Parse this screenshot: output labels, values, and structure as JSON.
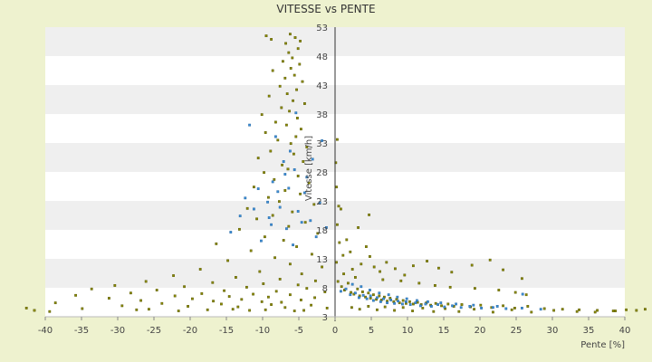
{
  "chart_data": {
    "type": "scatter",
    "title": "VITESSE vs PENTE",
    "xlabel": "Pente [%]",
    "ylabel": "Vitesse [km/h]",
    "xlim": [
      -40,
      40
    ],
    "ylim": [
      3,
      53
    ],
    "xticks": [
      "-40",
      "-35",
      "-30",
      "-25",
      "-20",
      "-15",
      "-10",
      "-5",
      "0",
      "5",
      "10",
      "15",
      "20",
      "25",
      "30",
      "35",
      "40"
    ],
    "yticks": [
      "3",
      "8",
      "13",
      "18",
      "23",
      "28",
      "33",
      "38",
      "43",
      "48",
      "53"
    ],
    "grid": "horizontal alternating bands",
    "colors": {
      "background": "#eef2cf",
      "band_white": "#ffffff",
      "band_grey": "#efefef",
      "series_olive": "#8a8a00",
      "series_blue": "#3d8fd8",
      "axis": "#333333"
    },
    "series": [
      {
        "color_key": "series_olive",
        "points": [
          [
            -6.2,
            51.8
          ],
          [
            -5.5,
            51.2
          ],
          [
            -4.8,
            50.6
          ],
          [
            -9.5,
            51.5
          ],
          [
            -8.8,
            50.9
          ],
          [
            -6.8,
            50.2
          ],
          [
            -5.1,
            49.3
          ],
          [
            -6.4,
            48.6
          ],
          [
            -5.9,
            47.7
          ],
          [
            -7.2,
            47.1
          ],
          [
            -4.9,
            46.6
          ],
          [
            -6.1,
            45.9
          ],
          [
            -8.6,
            45.5
          ],
          [
            -5.6,
            44.7
          ],
          [
            -6.9,
            44.2
          ],
          [
            -4.5,
            43.6
          ],
          [
            -7.6,
            42.8
          ],
          [
            -5.3,
            42.2
          ],
          [
            -6.6,
            41.5
          ],
          [
            -9.1,
            41.1
          ],
          [
            -5.8,
            40.3
          ],
          [
            -4.2,
            39.8
          ],
          [
            -7.4,
            39.1
          ],
          [
            -6.3,
            38.5
          ],
          [
            -10.1,
            37.9
          ],
          [
            -5.2,
            37.3
          ],
          [
            -8.2,
            36.6
          ],
          [
            -6.7,
            36.1
          ],
          [
            -4.7,
            35.4
          ],
          [
            -9.6,
            34.8
          ],
          [
            -5.4,
            34.1
          ],
          [
            -7.9,
            33.5
          ],
          [
            -6.1,
            32.9
          ],
          [
            -3.9,
            32.3
          ],
          [
            -8.9,
            31.6
          ],
          [
            -5.7,
            31.1
          ],
          [
            -10.6,
            30.4
          ],
          [
            -4.4,
            29.8
          ],
          [
            -7.3,
            29.2
          ],
          [
            -6.5,
            28.5
          ],
          [
            -9.8,
            27.9
          ],
          [
            -5.1,
            27.3
          ],
          [
            -8.4,
            26.7
          ],
          [
            -3.6,
            26.1
          ],
          [
            -11.2,
            25.4
          ],
          [
            -6.9,
            24.8
          ],
          [
            -4.8,
            24.2
          ],
          [
            -9.2,
            23.6
          ],
          [
            -7.7,
            22.9
          ],
          [
            -2.9,
            22.4
          ],
          [
            -12.1,
            21.7
          ],
          [
            -5.9,
            21.1
          ],
          [
            -8.6,
            20.5
          ],
          [
            -10.8,
            19.9
          ],
          [
            -4.1,
            19.3
          ],
          [
            -6.4,
            18.6
          ],
          [
            -13.2,
            18.1
          ],
          [
            -2.4,
            17.4
          ],
          [
            -9.7,
            16.8
          ],
          [
            -7.1,
            16.2
          ],
          [
            -16.4,
            15.6
          ],
          [
            -5.3,
            15.1
          ],
          [
            -11.6,
            14.4
          ],
          [
            -3.2,
            13.8
          ],
          [
            -8.3,
            13.2
          ],
          [
            -14.8,
            12.7
          ],
          [
            -6.2,
            12.1
          ],
          [
            -1.8,
            11.6
          ],
          [
            -18.6,
            11.2
          ],
          [
            -10.4,
            10.8
          ],
          [
            -4.6,
            10.4
          ],
          [
            -22.3,
            10.1
          ],
          [
            -13.7,
            9.8
          ],
          [
            -7.6,
            9.5
          ],
          [
            -2.7,
            9.2
          ],
          [
            -26.1,
            9.1
          ],
          [
            -16.9,
            8.9
          ],
          [
            -9.9,
            8.7
          ],
          [
            -5.1,
            8.5
          ],
          [
            -30.4,
            8.4
          ],
          [
            -20.8,
            8.2
          ],
          [
            -12.2,
            8.1
          ],
          [
            -3.9,
            7.9
          ],
          [
            -33.6,
            7.8
          ],
          [
            -24.6,
            7.6
          ],
          [
            -15.3,
            7.5
          ],
          [
            -8.1,
            7.4
          ],
          [
            -1.4,
            7.3
          ],
          [
            -28.2,
            7.1
          ],
          [
            -18.4,
            7.0
          ],
          [
            -11.3,
            6.9
          ],
          [
            -6.2,
            6.8
          ],
          [
            -35.8,
            6.7
          ],
          [
            -22.1,
            6.6
          ],
          [
            -14.6,
            6.5
          ],
          [
            -9.2,
            6.4
          ],
          [
            -2.8,
            6.3
          ],
          [
            -31.2,
            6.2
          ],
          [
            -19.7,
            6.1
          ],
          [
            -12.9,
            6.0
          ],
          [
            -4.7,
            5.9
          ],
          [
            -26.8,
            5.8
          ],
          [
            -16.8,
            5.7
          ],
          [
            -10.1,
            5.6
          ],
          [
            -7.4,
            5.5
          ],
          [
            -38.6,
            5.4
          ],
          [
            -23.9,
            5.3
          ],
          [
            -15.7,
            5.2
          ],
          [
            -8.8,
            5.1
          ],
          [
            -3.3,
            5.0
          ],
          [
            -29.4,
            4.9
          ],
          [
            -20.3,
            4.8
          ],
          [
            -13.4,
            4.7
          ],
          [
            -6.9,
            4.6
          ],
          [
            -1.1,
            4.5
          ],
          [
            -34.9,
            4.4
          ],
          [
            -25.7,
            4.3
          ],
          [
            -17.6,
            4.2
          ],
          [
            -11.8,
            4.1
          ],
          [
            -5.6,
            4.0
          ],
          [
            -39.4,
            3.9
          ],
          [
            -41.5,
            4.1
          ],
          [
            -42.6,
            4.5
          ],
          [
            -21.6,
            4.0
          ],
          [
            -27.4,
            4.2
          ],
          [
            -14.1,
            4.3
          ],
          [
            -9.6,
            4.2
          ],
          [
            -4.3,
            4.1
          ],
          [
            0.4,
            9.1
          ],
          [
            0.9,
            8.2
          ],
          [
            1.3,
            7.6
          ],
          [
            1.8,
            8.8
          ],
          [
            2.2,
            7.2
          ],
          [
            2.6,
            6.9
          ],
          [
            3.1,
            7.8
          ],
          [
            3.4,
            6.6
          ],
          [
            3.8,
            7.3
          ],
          [
            4.2,
            6.4
          ],
          [
            4.6,
            7.1
          ],
          [
            4.9,
            6.2
          ],
          [
            5.3,
            6.8
          ],
          [
            5.7,
            6.0
          ],
          [
            6.1,
            6.6
          ],
          [
            6.4,
            5.9
          ],
          [
            6.8,
            6.4
          ],
          [
            7.2,
            5.7
          ],
          [
            7.6,
            6.2
          ],
          [
            8.1,
            5.6
          ],
          [
            8.5,
            6.0
          ],
          [
            8.9,
            5.4
          ],
          [
            9.4,
            5.8
          ],
          [
            9.8,
            5.3
          ],
          [
            10.3,
            5.6
          ],
          [
            10.8,
            5.2
          ],
          [
            11.4,
            5.5
          ],
          [
            11.9,
            5.1
          ],
          [
            12.6,
            5.4
          ],
          [
            13.2,
            5.0
          ],
          [
            13.9,
            5.3
          ],
          [
            14.7,
            4.9
          ],
          [
            15.6,
            5.2
          ],
          [
            16.4,
            4.8
          ],
          [
            17.5,
            5.1
          ],
          [
            18.7,
            4.7
          ],
          [
            20.1,
            5.0
          ],
          [
            21.6,
            4.6
          ],
          [
            23.2,
            4.9
          ],
          [
            24.8,
            4.5
          ],
          [
            26.6,
            4.8
          ],
          [
            28.9,
            4.4
          ],
          [
            31.4,
            4.3
          ],
          [
            33.7,
            4.2
          ],
          [
            36.2,
            4.1
          ],
          [
            38.4,
            4.0
          ],
          [
            40.2,
            4.2
          ],
          [
            41.6,
            4.1
          ],
          [
            42.8,
            4.3
          ],
          [
            1.2,
            10.4
          ],
          [
            2.4,
            11.2
          ],
          [
            3.6,
            12.1
          ],
          [
            4.8,
            13.4
          ],
          [
            5.4,
            11.6
          ],
          [
            6.2,
            10.8
          ],
          [
            7.1,
            12.4
          ],
          [
            8.3,
            11.3
          ],
          [
            9.6,
            10.2
          ],
          [
            10.8,
            11.8
          ],
          [
            12.7,
            12.6
          ],
          [
            14.3,
            11.4
          ],
          [
            16.1,
            10.7
          ],
          [
            18.9,
            11.9
          ],
          [
            21.4,
            12.8
          ],
          [
            23.2,
            11.1
          ],
          [
            25.8,
            9.6
          ],
          [
            2.1,
            14.2
          ],
          [
            4.3,
            15.1
          ],
          [
            1.6,
            16.3
          ],
          [
            3.2,
            18.4
          ],
          [
            4.7,
            20.6
          ],
          [
            0.8,
            21.6
          ],
          [
            2.8,
            9.8
          ],
          [
            6.6,
            9.4
          ],
          [
            9.1,
            9.2
          ],
          [
            11.6,
            8.8
          ],
          [
            13.8,
            8.4
          ],
          [
            15.9,
            8.1
          ],
          [
            19.3,
            7.9
          ],
          [
            22.6,
            7.6
          ],
          [
            24.9,
            7.2
          ],
          [
            26.4,
            6.8
          ],
          [
            0.2,
            12.4
          ],
          [
            1.1,
            13.6
          ],
          [
            0.6,
            15.8
          ],
          [
            0.3,
            18.9
          ],
          [
            0.5,
            22.1
          ],
          [
            0.2,
            25.4
          ],
          [
            0.1,
            29.6
          ],
          [
            0.3,
            33.6
          ],
          [
            2.3,
            4.6
          ],
          [
            3.4,
            4.3
          ],
          [
            4.6,
            4.8
          ],
          [
            5.8,
            4.2
          ],
          [
            6.9,
            4.7
          ],
          [
            8.2,
            4.1
          ],
          [
            9.4,
            4.6
          ],
          [
            10.7,
            4.0
          ],
          [
            12.1,
            4.5
          ],
          [
            13.6,
            3.9
          ],
          [
            15.2,
            4.4
          ],
          [
            17.1,
            3.9
          ],
          [
            19.2,
            4.3
          ],
          [
            21.8,
            3.8
          ],
          [
            24.4,
            4.2
          ],
          [
            27.1,
            3.8
          ],
          [
            30.2,
            4.1
          ],
          [
            33.4,
            3.9
          ],
          [
            35.9,
            3.8
          ],
          [
            38.7,
            4.0
          ]
        ]
      },
      {
        "color_key": "series_blue",
        "points": [
          [
            -11.8,
            36.1
          ],
          [
            -5.4,
            38.2
          ],
          [
            -8.2,
            34.1
          ],
          [
            -6.2,
            31.6
          ],
          [
            -7.1,
            29.8
          ],
          [
            -5.6,
            28.4
          ],
          [
            -3.9,
            27.1
          ],
          [
            -8.6,
            26.3
          ],
          [
            -6.4,
            25.2
          ],
          [
            -4.2,
            24.4
          ],
          [
            -12.4,
            23.5
          ],
          [
            -9.3,
            22.8
          ],
          [
            -7.6,
            21.9
          ],
          [
            -5.1,
            21.2
          ],
          [
            -13.1,
            20.4
          ],
          [
            -3.4,
            19.6
          ],
          [
            -8.8,
            18.9
          ],
          [
            -6.7,
            18.2
          ],
          [
            -14.4,
            17.6
          ],
          [
            -2.6,
            16.8
          ],
          [
            -10.2,
            16.1
          ],
          [
            -5.8,
            15.4
          ],
          [
            -9.1,
            20.1
          ],
          [
            -4.6,
            19.3
          ],
          [
            -7.9,
            24.6
          ],
          [
            -6.9,
            27.6
          ],
          [
            -2.1,
            22.7
          ],
          [
            -1.2,
            18.4
          ],
          [
            -3.1,
            30.2
          ],
          [
            -1.8,
            33.4
          ],
          [
            -10.6,
            25.1
          ],
          [
            -11.2,
            21.6
          ],
          [
            0.8,
            7.4
          ],
          [
            1.5,
            7.8
          ],
          [
            2.1,
            6.8
          ],
          [
            2.8,
            7.1
          ],
          [
            3.3,
            6.3
          ],
          [
            3.9,
            6.7
          ],
          [
            4.4,
            6.1
          ],
          [
            4.9,
            6.6
          ],
          [
            5.3,
            5.8
          ],
          [
            5.8,
            6.3
          ],
          [
            6.3,
            5.6
          ],
          [
            6.7,
            6.1
          ],
          [
            7.2,
            5.4
          ],
          [
            7.7,
            5.9
          ],
          [
            8.2,
            5.3
          ],
          [
            8.7,
            5.7
          ],
          [
            9.3,
            5.2
          ],
          [
            9.8,
            5.6
          ],
          [
            10.4,
            5.1
          ],
          [
            11.1,
            5.4
          ],
          [
            11.8,
            4.9
          ],
          [
            12.5,
            5.2
          ],
          [
            13.3,
            4.8
          ],
          [
            14.2,
            5.1
          ],
          [
            15.1,
            4.7
          ],
          [
            16.2,
            4.9
          ],
          [
            17.4,
            4.6
          ],
          [
            18.6,
            4.8
          ],
          [
            20.2,
            4.5
          ],
          [
            21.8,
            4.6
          ],
          [
            23.6,
            4.4
          ],
          [
            25.8,
            4.5
          ],
          [
            28.4,
            4.3
          ],
          [
            2.4,
            8.6
          ],
          [
            3.6,
            8.2
          ],
          [
            4.8,
            7.6
          ],
          [
            6.1,
            7.1
          ],
          [
            7.4,
            6.8
          ],
          [
            8.6,
            6.4
          ],
          [
            9.9,
            6.1
          ],
          [
            11.3,
            5.8
          ],
          [
            12.8,
            5.6
          ],
          [
            14.6,
            5.4
          ],
          [
            16.7,
            5.2
          ],
          [
            19.1,
            5.0
          ],
          [
            22.4,
            4.8
          ],
          [
            25.9,
            6.9
          ]
        ]
      }
    ]
  }
}
